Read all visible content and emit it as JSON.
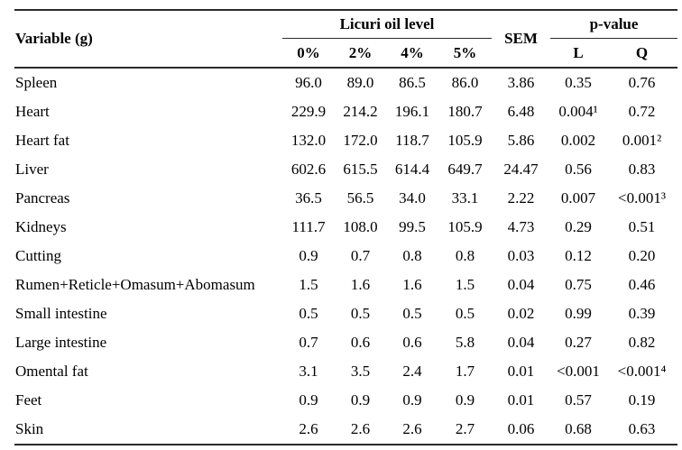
{
  "figure": {
    "background": "#ffffff",
    "rule_color": "#2b2b2b",
    "text_color": "#000000"
  },
  "table": {
    "header": {
      "variable": "Variable (g)",
      "oil_group": "Licuri oil level",
      "sem": "SEM",
      "p_group": "p-value",
      "oil_levels": [
        "0%",
        "2%",
        "4%",
        "5%"
      ],
      "p_cols": [
        "L",
        "Q"
      ]
    },
    "rows": [
      {
        "variable": "Spleen",
        "values": [
          "96.0",
          "89.0",
          "86.5",
          "86.0"
        ],
        "sem": "3.86",
        "p_l": "0.35",
        "p_q": "0.76"
      },
      {
        "variable": "Heart",
        "values": [
          "229.9",
          "214.2",
          "196.1",
          "180.7"
        ],
        "sem": "6.48",
        "p_l": "0.004¹",
        "p_q": "0.72"
      },
      {
        "variable": "Heart fat",
        "values": [
          "132.0",
          "172.0",
          "118.7",
          "105.9"
        ],
        "sem": "5.86",
        "p_l": "0.002",
        "p_q": "0.001²"
      },
      {
        "variable": "Liver",
        "values": [
          "602.6",
          "615.5",
          "614.4",
          "649.7"
        ],
        "sem": "24.47",
        "p_l": "0.56",
        "p_q": "0.83"
      },
      {
        "variable": "Pancreas",
        "values": [
          "36.5",
          "56.5",
          "34.0",
          "33.1"
        ],
        "sem": "2.22",
        "p_l": "0.007",
        "p_q": "<0.001³"
      },
      {
        "variable": "Kidneys",
        "values": [
          "111.7",
          "108.0",
          "99.5",
          "105.9"
        ],
        "sem": "4.73",
        "p_l": "0.29",
        "p_q": "0.51"
      },
      {
        "variable": "Cutting",
        "values": [
          "0.9",
          "0.7",
          "0.8",
          "0.8"
        ],
        "sem": "0.03",
        "p_l": "0.12",
        "p_q": "0.20"
      },
      {
        "variable": "Rumen+Reticle+Omasum+Abomasum",
        "values": [
          "1.5",
          "1.6",
          "1.6",
          "1.5"
        ],
        "sem": "0.04",
        "p_l": "0.75",
        "p_q": "0.46"
      },
      {
        "variable": "Small intestine",
        "values": [
          "0.5",
          "0.5",
          "0.5",
          "0.5"
        ],
        "sem": "0.02",
        "p_l": "0.99",
        "p_q": "0.39"
      },
      {
        "variable": "Large intestine",
        "values": [
          "0.7",
          "0.6",
          "0.6",
          "5.8"
        ],
        "sem": "0.04",
        "p_l": "0.27",
        "p_q": "0.82"
      },
      {
        "variable": "Omental fat",
        "values": [
          "3.1",
          "3.5",
          "2.4",
          "1.7"
        ],
        "sem": "0.01",
        "p_l": "<0.001",
        "p_q": "<0.001⁴"
      },
      {
        "variable": "Feet",
        "values": [
          "0.9",
          "0.9",
          "0.9",
          "0.9"
        ],
        "sem": "0.01",
        "p_l": "0.57",
        "p_q": "0.19"
      },
      {
        "variable": "Skin",
        "values": [
          "2.6",
          "2.6",
          "2.6",
          "2.7"
        ],
        "sem": "0.06",
        "p_l": "0.68",
        "p_q": "0.63"
      }
    ]
  }
}
